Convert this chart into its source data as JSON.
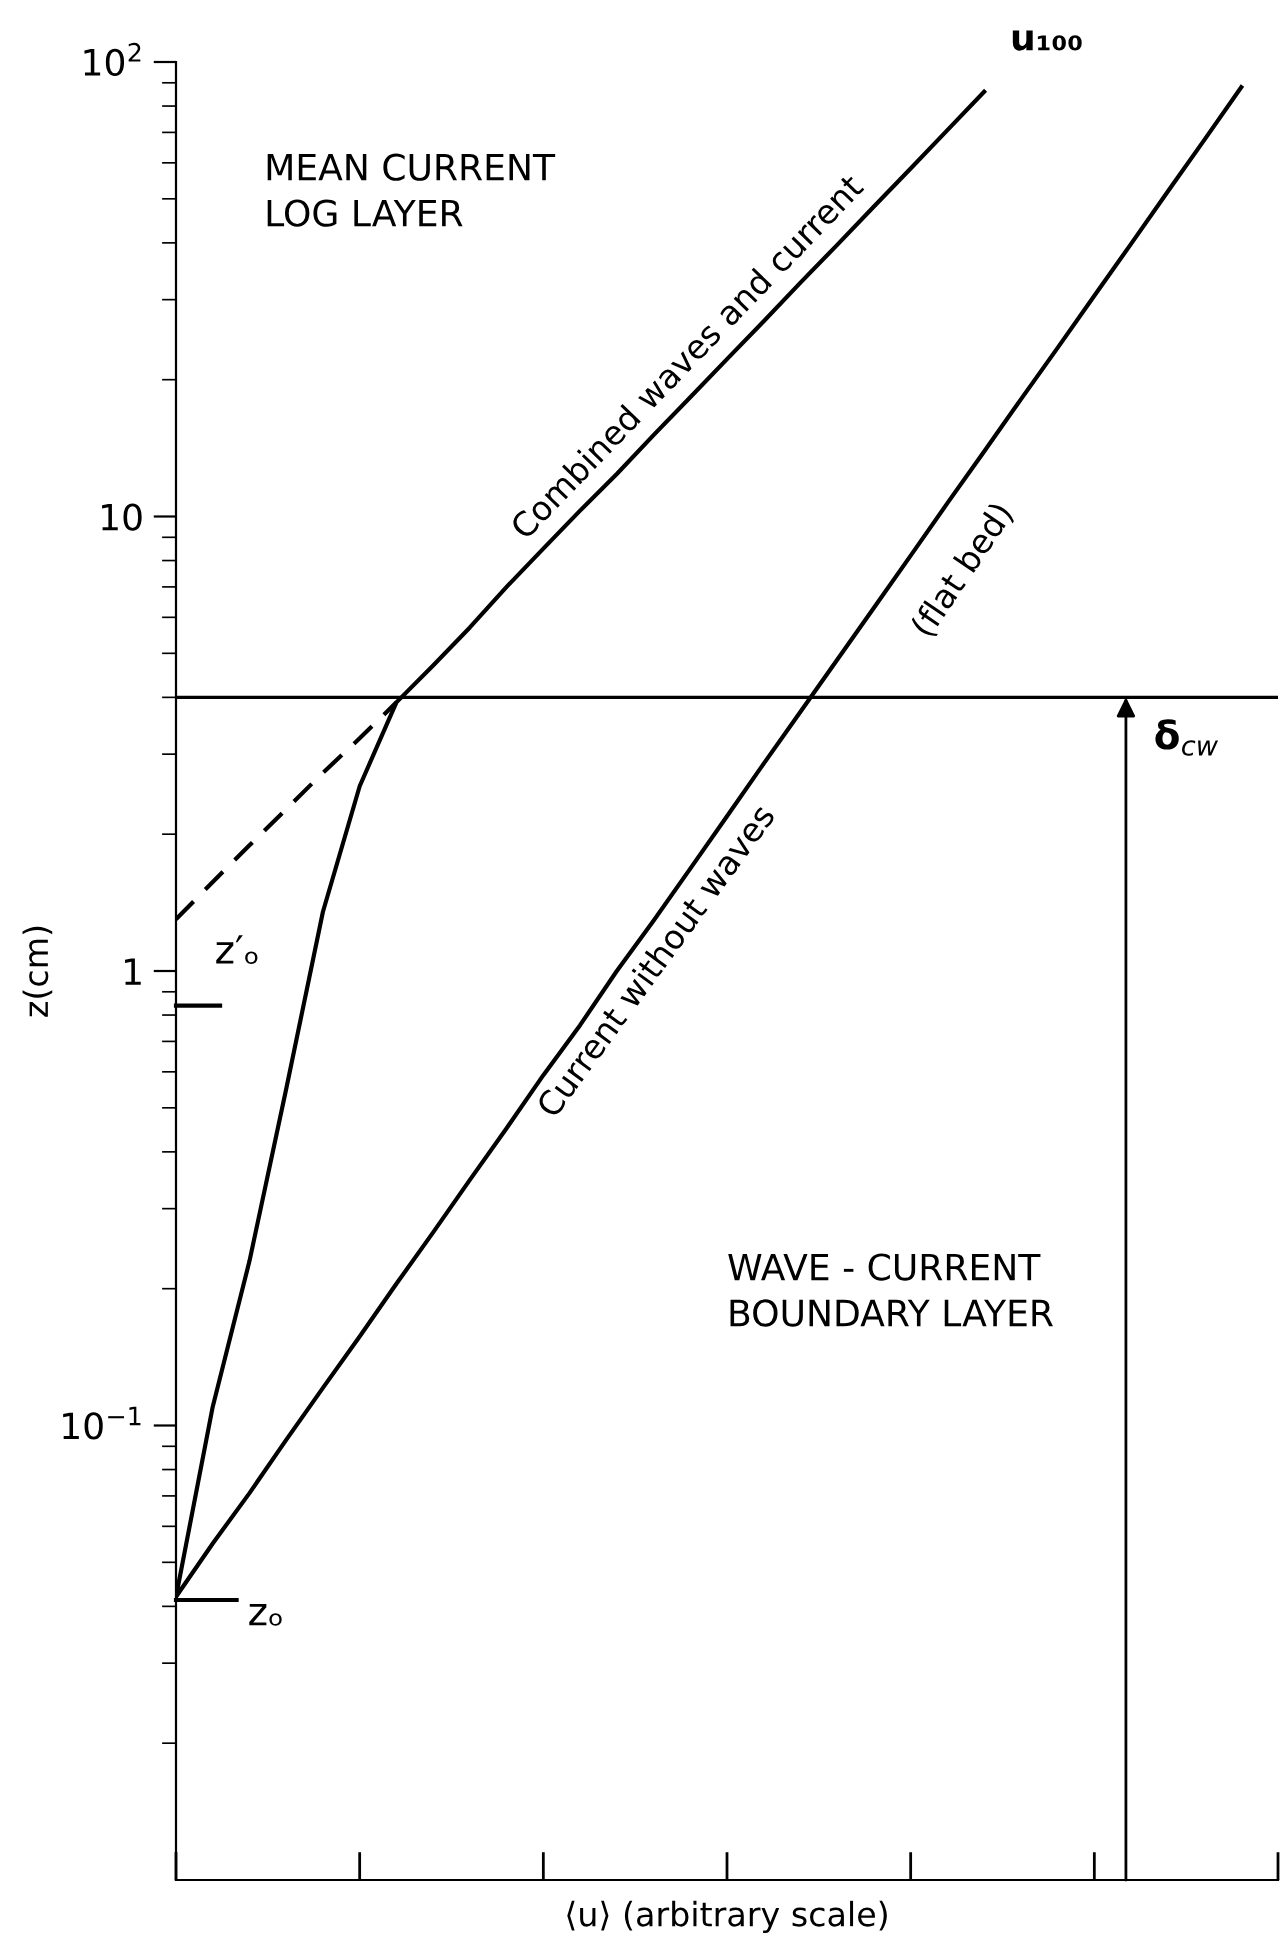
{
  "chart_data": {
    "type": "line",
    "xlabel": "⟨u⟩ (arbitrary scale)",
    "ylabel": "z(cm)",
    "log": "y",
    "categories": [
      null,
      null,
      null,
      null,
      null,
      null,
      null,
      null,
      null,
      null,
      null,
      null,
      null,
      null,
      null,
      null,
      null,
      null,
      null,
      null,
      null,
      null,
      null,
      null,
      null,
      null,
      null,
      null,
      null,
      null,
      null
    ],
    "ylim": [
      0.01,
      100
    ],
    "yticks": [
      {
        "value": 0.1,
        "label": "10$^{−1}$"
      },
      {
        "value": 1,
        "label": "1"
      },
      {
        "value": 10,
        "label": "10"
      },
      {
        "value": 100,
        "label": "10$^{2}$"
      }
    ],
    "grid": false,
    "legend": false,
    "marker": "none",
    "series": [
      {
        "name": "Combined waves and current",
        "color": "#000000",
        "values": [
          0.042,
          0.11,
          0.23,
          0.55,
          1.35,
          2.55,
          3.9,
          4.7,
          5.7,
          7.0,
          8.5,
          10.3,
          12.4,
          15.1,
          18.3,
          22.2,
          26.9,
          32.7,
          39.6,
          48.1,
          58.3,
          70.8,
          86,
          null,
          null,
          null,
          null,
          null,
          null,
          null,
          null
        ]
      },
      {
        "name": "Current without waves",
        "color": "#000000",
        "values": [
          0.042,
          0.055,
          0.071,
          0.093,
          0.121,
          0.157,
          0.205,
          0.266,
          0.347,
          0.451,
          0.59,
          0.76,
          1.0,
          1.29,
          1.68,
          2.19,
          2.86,
          3.72,
          4.84,
          6.3,
          8.2,
          10.7,
          13.9,
          18.1,
          23.5,
          30.6,
          39.8,
          51.9,
          67.5,
          88,
          null
        ]
      },
      {
        "color": "#000000",
        "line_style": "dashed",
        "values": [
          1.3,
          1.57,
          1.89,
          2.27,
          2.73,
          3.25,
          3.9,
          null,
          null,
          null,
          null,
          null,
          null,
          null,
          null,
          null,
          null,
          null,
          null,
          null,
          null,
          null,
          null,
          null,
          null,
          null,
          null,
          null,
          null,
          null,
          null
        ]
      }
    ],
    "ref_lines": [
      {
        "axis": "y",
        "value": 4,
        "color": "#000000"
      }
    ],
    "annotations": [
      "MEAN CURRENT\nLOG LAYER",
      "WAVE - CURRENT\nBOUNDARY LAYER",
      "(flat bed)",
      "u₁₀₀",
      "zₒ",
      "z′ₒ",
      {
        "text": "δ$_{cw}$",
        "y": 4
      }
    ]
  }
}
